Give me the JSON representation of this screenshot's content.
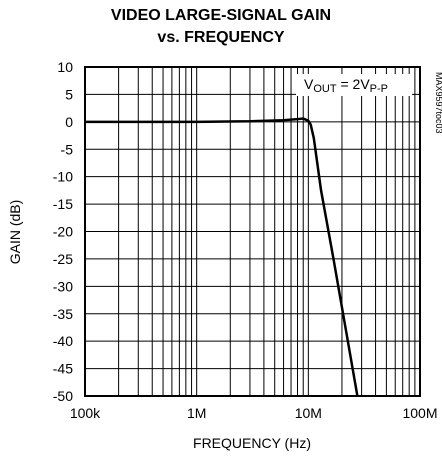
{
  "chart_data": {
    "type": "line",
    "title": "VIDEO LARGE-SIGNAL GAIN",
    "subtitle": "vs. FREQUENCY",
    "xlabel": "FREQUENCY (Hz)",
    "ylabel": "GAIN (dB)",
    "annotation": [
      "V",
      "OUT",
      " = 2V",
      "P-P"
    ],
    "side_label": "MAX9597toc03",
    "xscale": "log",
    "grid": true,
    "xlim": [
      100000,
      100000000
    ],
    "ylim": [
      -50,
      10
    ],
    "xticks": [
      {
        "value": 100000,
        "label": "100k"
      },
      {
        "value": 1000000,
        "label": "1M"
      },
      {
        "value": 10000000,
        "label": "10M"
      },
      {
        "value": 100000000,
        "label": "100M"
      }
    ],
    "xminorticks": [
      200000,
      300000,
      400000,
      500000,
      600000,
      700000,
      800000,
      900000,
      2000000,
      3000000,
      4000000,
      5000000,
      6000000,
      7000000,
      8000000,
      9000000,
      20000000,
      30000000,
      40000000,
      50000000,
      60000000,
      70000000,
      80000000,
      90000000
    ],
    "yticks": [
      10,
      5,
      0,
      -5,
      -10,
      -15,
      -20,
      -25,
      -30,
      -35,
      -40,
      -45,
      -50
    ],
    "x": [
      100000,
      1000000,
      3000000,
      6000000,
      8000000,
      9000000,
      10000000,
      10500000,
      11200000,
      13000000,
      16800000,
      21500000,
      27500000
    ],
    "series": [
      {
        "name": "gain",
        "color": "#000000",
        "values": [
          0,
          0,
          0.1,
          0.3,
          0.5,
          0.6,
          0.2,
          -0.5,
          -3,
          -12.5,
          -25,
          -37.5,
          -50
        ]
      }
    ]
  }
}
